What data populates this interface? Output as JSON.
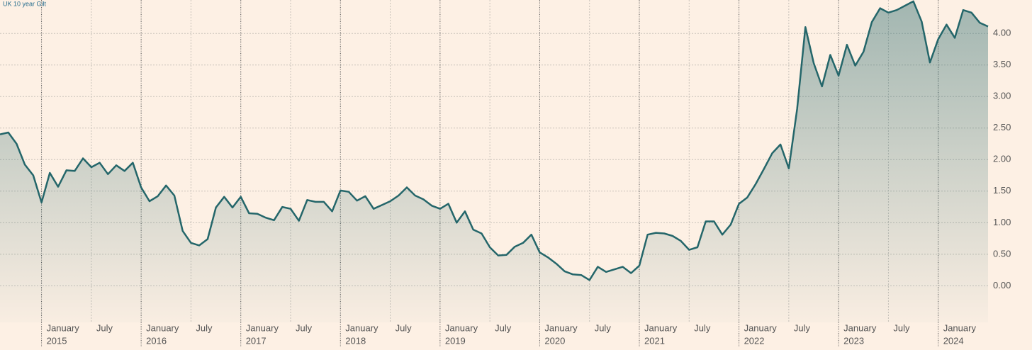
{
  "chart_data": {
    "type": "area-line",
    "title": "UK 10 year Gilt",
    "x": [
      "2014-08",
      "2014-09",
      "2014-10",
      "2014-11",
      "2014-12",
      "2015-01",
      "2015-02",
      "2015-03",
      "2015-04",
      "2015-05",
      "2015-06",
      "2015-07",
      "2015-08",
      "2015-09",
      "2015-10",
      "2015-11",
      "2015-12",
      "2016-01",
      "2016-02",
      "2016-03",
      "2016-04",
      "2016-05",
      "2016-06",
      "2016-07",
      "2016-08",
      "2016-09",
      "2016-10",
      "2016-11",
      "2016-12",
      "2017-01",
      "2017-02",
      "2017-03",
      "2017-04",
      "2017-05",
      "2017-06",
      "2017-07",
      "2017-08",
      "2017-09",
      "2017-10",
      "2017-11",
      "2017-12",
      "2018-01",
      "2018-02",
      "2018-03",
      "2018-04",
      "2018-05",
      "2018-06",
      "2018-07",
      "2018-08",
      "2018-09",
      "2018-10",
      "2018-11",
      "2018-12",
      "2019-01",
      "2019-02",
      "2019-03",
      "2019-04",
      "2019-05",
      "2019-06",
      "2019-07",
      "2019-08",
      "2019-09",
      "2019-10",
      "2019-11",
      "2019-12",
      "2020-01",
      "2020-02",
      "2020-03",
      "2020-04",
      "2020-05",
      "2020-06",
      "2020-07",
      "2020-08",
      "2020-09",
      "2020-10",
      "2020-11",
      "2020-12",
      "2021-01",
      "2021-02",
      "2021-03",
      "2021-04",
      "2021-05",
      "2021-06",
      "2021-07",
      "2021-08",
      "2021-09",
      "2021-10",
      "2021-11",
      "2021-12",
      "2022-01",
      "2022-02",
      "2022-03",
      "2022-04",
      "2022-05",
      "2022-06",
      "2022-07",
      "2022-08",
      "2022-09",
      "2022-10",
      "2022-11",
      "2022-12",
      "2023-01",
      "2023-02",
      "2023-03",
      "2023-04",
      "2023-05",
      "2023-06",
      "2023-07",
      "2023-08",
      "2023-09",
      "2023-10",
      "2023-11",
      "2023-12",
      "2024-01",
      "2024-02",
      "2024-03",
      "2024-04",
      "2024-05",
      "2024-06",
      "2024-07"
    ],
    "series": [
      {
        "name": "UK 10 year Gilt",
        "color": "#24666a",
        "values": [
          2.4,
          2.43,
          2.25,
          1.92,
          1.75,
          1.32,
          1.79,
          1.57,
          1.83,
          1.82,
          2.02,
          1.88,
          1.95,
          1.77,
          1.91,
          1.82,
          1.95,
          1.56,
          1.34,
          1.42,
          1.59,
          1.43,
          0.87,
          0.68,
          0.64,
          0.74,
          1.24,
          1.41,
          1.24,
          1.41,
          1.15,
          1.14,
          1.08,
          1.04,
          1.25,
          1.22,
          1.03,
          1.36,
          1.33,
          1.33,
          1.18,
          1.51,
          1.49,
          1.35,
          1.42,
          1.22,
          1.28,
          1.34,
          1.43,
          1.56,
          1.43,
          1.37,
          1.27,
          1.22,
          1.3,
          1.0,
          1.18,
          0.89,
          0.83,
          0.61,
          0.48,
          0.49,
          0.62,
          0.68,
          0.81,
          0.53,
          0.45,
          0.35,
          0.23,
          0.18,
          0.17,
          0.09,
          0.3,
          0.22,
          0.26,
          0.3,
          0.2,
          0.32,
          0.81,
          0.84,
          0.83,
          0.79,
          0.71,
          0.57,
          0.61,
          1.02,
          1.02,
          0.81,
          0.97,
          1.3,
          1.4,
          1.61,
          1.85,
          2.1,
          2.24,
          1.86,
          2.8,
          4.1,
          3.53,
          3.16,
          3.66,
          3.33,
          3.82,
          3.49,
          3.71,
          4.18,
          4.4,
          4.33,
          4.37,
          4.44,
          4.51,
          4.19,
          3.54,
          3.91,
          4.14,
          3.93,
          4.37,
          4.33,
          4.17,
          4.11
        ]
      }
    ],
    "xlim": [
      "2014-08",
      "2024-07"
    ],
    "xticks": [
      {
        "value": "2015-01",
        "label": "January",
        "year": "2015"
      },
      {
        "value": "2015-07",
        "label": "July"
      },
      {
        "value": "2016-01",
        "label": "January",
        "year": "2016"
      },
      {
        "value": "2016-07",
        "label": "July"
      },
      {
        "value": "2017-01",
        "label": "January",
        "year": "2017"
      },
      {
        "value": "2017-07",
        "label": "July"
      },
      {
        "value": "2018-01",
        "label": "January",
        "year": "2018"
      },
      {
        "value": "2018-07",
        "label": "July"
      },
      {
        "value": "2019-01",
        "label": "January",
        "year": "2019"
      },
      {
        "value": "2019-07",
        "label": "July"
      },
      {
        "value": "2020-01",
        "label": "January",
        "year": "2020"
      },
      {
        "value": "2020-07",
        "label": "July"
      },
      {
        "value": "2021-01",
        "label": "January",
        "year": "2021"
      },
      {
        "value": "2021-07",
        "label": "July"
      },
      {
        "value": "2022-01",
        "label": "January",
        "year": "2022"
      },
      {
        "value": "2022-07",
        "label": "July"
      },
      {
        "value": "2023-01",
        "label": "January",
        "year": "2023"
      },
      {
        "value": "2023-07",
        "label": "July"
      },
      {
        "value": "2024-01",
        "label": "January",
        "year": "2024"
      }
    ],
    "ylim": [
      -0.58,
      4.53
    ],
    "yticks": [
      {
        "value": 0,
        "label": "0.00"
      },
      {
        "value": 0.5,
        "label": "0.50"
      },
      {
        "value": 1,
        "label": "1.00"
      },
      {
        "value": 1.5,
        "label": "1.50"
      },
      {
        "value": 2,
        "label": "2.00"
      },
      {
        "value": 2.5,
        "label": "2.50"
      },
      {
        "value": 3,
        "label": "3.00"
      },
      {
        "value": 3.5,
        "label": "3.50"
      },
      {
        "value": 4,
        "label": "4.00"
      }
    ],
    "grid": true
  }
}
